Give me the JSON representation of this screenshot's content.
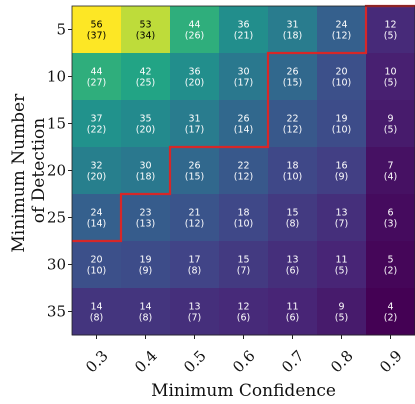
{
  "chart_data": {
    "type": "heatmap",
    "xlabel": "Minimum Confidence",
    "ylabel_lines": [
      "Minimum Number",
      "of Detection"
    ],
    "x_categories": [
      "0.3",
      "0.4",
      "0.5",
      "0.6",
      "0.7",
      "0.8",
      "0.9"
    ],
    "y_categories": [
      "5",
      "10",
      "15",
      "20",
      "25",
      "30",
      "35"
    ],
    "values": [
      [
        56,
        53,
        44,
        36,
        31,
        24,
        12
      ],
      [
        44,
        42,
        36,
        30,
        26,
        20,
        10
      ],
      [
        37,
        35,
        31,
        26,
        22,
        19,
        9
      ],
      [
        32,
        30,
        26,
        22,
        18,
        16,
        7
      ],
      [
        24,
        23,
        21,
        18,
        15,
        13,
        6
      ],
      [
        20,
        19,
        17,
        15,
        13,
        11,
        5
      ],
      [
        14,
        14,
        13,
        12,
        11,
        9,
        4
      ]
    ],
    "secondary_values": [
      [
        37,
        34,
        26,
        21,
        18,
        12,
        5
      ],
      [
        27,
        25,
        20,
        17,
        15,
        10,
        5
      ],
      [
        22,
        20,
        17,
        14,
        12,
        10,
        5
      ],
      [
        20,
        18,
        15,
        12,
        10,
        9,
        4
      ],
      [
        14,
        13,
        12,
        10,
        8,
        7,
        3
      ],
      [
        10,
        9,
        8,
        7,
        6,
        5,
        2
      ],
      [
        8,
        8,
        7,
        6,
        6,
        5,
        2
      ]
    ],
    "colormap": "viridis",
    "color_range": [
      4,
      56
    ],
    "boundary_color": "#d62728",
    "boundary_steps": [
      5,
      4,
      3,
      3,
      1,
      1,
      0
    ]
  }
}
